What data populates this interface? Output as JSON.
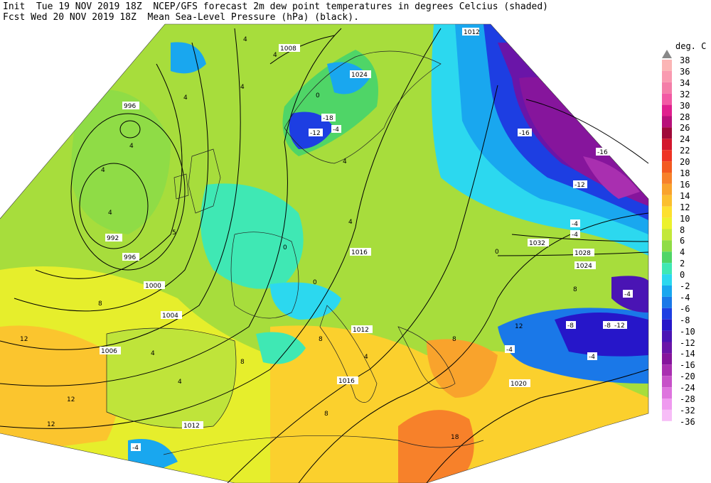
{
  "header": {
    "line1": "Init  Tue 19 NOV 2019 18Z  NCEP/GFS forecast 2m dew point temperatures in degrees Celcius (shaded)",
    "line2": "Fcst Wed 20 NOV 2019 18Z  Mean Sea-Level Pressure (hPa) (black)."
  },
  "colorbar": {
    "unit": "deg. C",
    "levels": [
      {
        "label": "38",
        "color": "#ffffff"
      },
      {
        "label": "36",
        "color": "#fbb5b5"
      },
      {
        "label": "34",
        "color": "#f99ab0"
      },
      {
        "label": "32",
        "color": "#f47ea8"
      },
      {
        "label": "30",
        "color": "#f25aa4"
      },
      {
        "label": "28",
        "color": "#e0208e"
      },
      {
        "label": "26",
        "color": "#b8107a"
      },
      {
        "label": "24",
        "color": "#a00a3a"
      },
      {
        "label": "22",
        "color": "#d3172d"
      },
      {
        "label": "20",
        "color": "#ee3424"
      },
      {
        "label": "18",
        "color": "#f35a20"
      },
      {
        "label": "16",
        "color": "#f7812a"
      },
      {
        "label": "14",
        "color": "#f9a32c"
      },
      {
        "label": "12",
        "color": "#fbbf2e"
      },
      {
        "label": "10",
        "color": "#fde02f"
      },
      {
        "label": "8",
        "color": "#ecf12d"
      },
      {
        "label": "6",
        "color": "#c3e83a"
      },
      {
        "label": "4",
        "color": "#8fdc46"
      },
      {
        "label": "2",
        "color": "#4fd567"
      },
      {
        "label": "0",
        "color": "#3fe8b4"
      },
      {
        "label": "-2",
        "color": "#2cd8ef"
      },
      {
        "label": "-4",
        "color": "#19a7ef"
      },
      {
        "label": "-6",
        "color": "#1a78e8"
      },
      {
        "label": "-8",
        "color": "#1d3ee2"
      },
      {
        "label": "-10",
        "color": "#2616c9"
      },
      {
        "label": "-12",
        "color": "#4a14b4"
      },
      {
        "label": "-14",
        "color": "#6a15a8"
      },
      {
        "label": "-16",
        "color": "#86159c"
      },
      {
        "label": "-20",
        "color": "#a92fb0"
      },
      {
        "label": "-24",
        "color": "#c751c8"
      },
      {
        "label": "-28",
        "color": "#de74de"
      },
      {
        "label": "-32",
        "color": "#ef9aef"
      },
      {
        "label": "-36",
        "color": "#f7bdf7"
      }
    ]
  },
  "isobar_labels": [
    "1008",
    "1024",
    "996",
    "992",
    "996",
    "1000",
    "1004",
    "1006",
    "1012",
    "1016",
    "1012",
    "1016",
    "1020",
    "1032",
    "1028",
    "1024",
    "1012"
  ],
  "value_labels": [
    "4",
    "4",
    "4",
    "4",
    "4",
    "0",
    "-12",
    "-18",
    "-4",
    "4",
    "4",
    "4",
    "4",
    "5",
    "0",
    "0",
    "0",
    "8",
    "8",
    "8",
    "12",
    "12",
    "12",
    "12",
    "8",
    "4",
    "4",
    "-4",
    "-4",
    "-8",
    "-4",
    "-4",
    "-8",
    "-12",
    "-16",
    "-16",
    "-12",
    "-4",
    "-4",
    "18",
    "8",
    "8",
    "4"
  ]
}
